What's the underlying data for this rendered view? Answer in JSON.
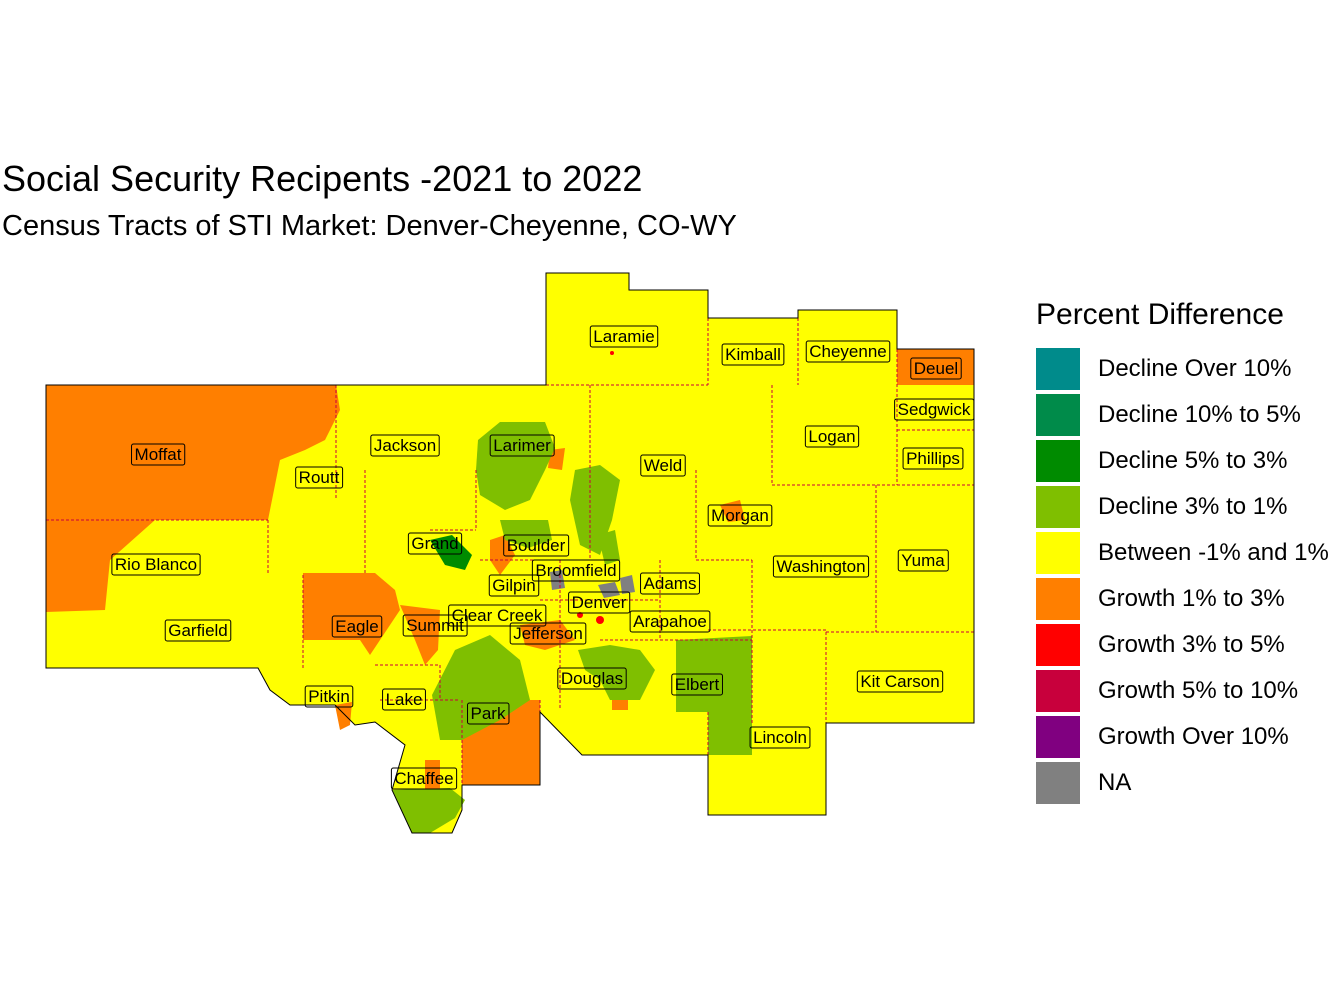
{
  "title": "Social Security Recipents -2021 to 2022",
  "subtitle": "Census Tracts of STI Market: Denver-Cheyenne, CO-WY",
  "legend": {
    "title": "Percent Difference",
    "items": [
      {
        "label": "Decline Over 10%",
        "color": "#008B8B"
      },
      {
        "label": "Decline 10% to 5%",
        "color": "#008B4A"
      },
      {
        "label": "Decline 5% to 3%",
        "color": "#008B00"
      },
      {
        "label": "Decline 3% to 1%",
        "color": "#7FBF00"
      },
      {
        "label": "Between -1% and 1%",
        "color": "#FFFF00"
      },
      {
        "label": "Growth 1% to 3%",
        "color": "#FF7F00"
      },
      {
        "label": "Growth 3% to 5%",
        "color": "#FF0000"
      },
      {
        "label": "Growth 5% to 10%",
        "color": "#C8003C"
      },
      {
        "label": "Growth Over 10%",
        "color": "#800080"
      },
      {
        "label": "NA",
        "color": "#808080"
      }
    ]
  },
  "counties": [
    "Laramie",
    "Kimball",
    "Cheyenne",
    "Deuel",
    "Sedgwick",
    "Moffat",
    "Jackson",
    "Larimer",
    "Weld",
    "Logan",
    "Phillips",
    "Routt",
    "Morgan",
    "Grand",
    "Boulder",
    "Rio Blanco",
    "Broomfield",
    "Adams",
    "Washington",
    "Yuma",
    "Gilpin",
    "Denver",
    "Clear Creek",
    "Eagle",
    "Summit",
    "Jefferson",
    "Arapahoe",
    "Garfield",
    "Douglas",
    "Elbert",
    "Kit Carson",
    "Pitkin",
    "Lake",
    "Park",
    "Lincoln",
    "Chaffee"
  ]
}
